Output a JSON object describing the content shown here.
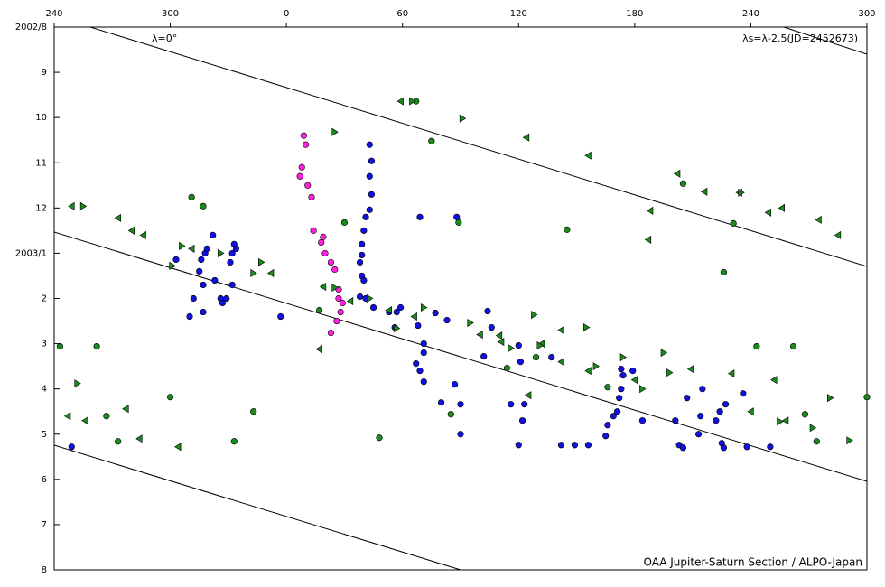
{
  "chart_data": {
    "type": "scatter",
    "annotations": [
      "λ=0°",
      "λs=λ-2.5(JD=2452673)",
      "OAA Jupiter-Saturn Section / ALPO-Japan"
    ],
    "xlim": [
      240,
      660
    ],
    "xticks": [
      240,
      300,
      {
        "value": 360,
        "label": "0"
      },
      {
        "value": 420,
        "label": "60"
      },
      {
        "value": 480,
        "label": "120"
      },
      {
        "value": 540,
        "label": "180"
      },
      {
        "value": 600,
        "label": "240"
      },
      {
        "value": 660,
        "label": "300"
      }
    ],
    "ylim": [
      0,
      12
    ],
    "yticks": [
      {
        "value": 0,
        "label": "2002/8"
      },
      {
        "value": 1,
        "label": "9"
      },
      {
        "value": 2,
        "label": "10"
      },
      {
        "value": 3,
        "label": "11"
      },
      {
        "value": 4,
        "label": "12"
      },
      {
        "value": 5,
        "label": "2003/1"
      },
      {
        "value": 6,
        "label": "2"
      },
      {
        "value": 7,
        "label": "3"
      },
      {
        "value": 8,
        "label": "4"
      },
      {
        "value": 9,
        "label": "5"
      },
      {
        "value": 10,
        "label": "6"
      },
      {
        "value": 11,
        "label": "7"
      },
      {
        "value": 12,
        "label": "8"
      }
    ],
    "y_inverted": true,
    "series": [
      {
        "marker": "circle",
        "color": "#1010e0",
        "x": [
          303,
          310,
          312,
          315,
          316,
          317,
          318,
          319,
          322,
          323,
          326,
          327,
          329,
          331,
          332,
          333,
          332,
          334,
          317,
          249,
          403,
          404,
          403,
          404,
          403,
          401,
          400,
          399,
          399,
          398,
          399,
          400,
          398,
          401,
          357,
          405,
          413,
          417,
          419,
          416,
          428,
          431,
          431,
          427,
          429,
          431,
          437,
          443,
          440,
          447,
          450,
          450,
          464,
          466,
          462,
          429,
          448,
          480,
          481,
          483,
          482,
          480,
          476,
          497,
          502,
          509,
          516,
          525,
          526,
          529,
          531,
          532,
          533,
          534,
          533,
          539,
          544,
          561,
          563,
          565,
          567,
          573,
          574,
          575,
          582,
          584,
          585,
          586,
          587,
          596,
          598,
          610
        ],
        "y": [
          5.14,
          6.4,
          6.0,
          5.4,
          5.14,
          5.7,
          5.0,
          4.9,
          4.6,
          5.6,
          6.0,
          6.1,
          6.0,
          5.2,
          5.0,
          4.8,
          5.7,
          4.9,
          6.3,
          9.28,
          2.6,
          2.96,
          3.3,
          3.7,
          4.04,
          4.2,
          4.5,
          4.8,
          5.04,
          5.2,
          5.5,
          5.6,
          5.96,
          6.0,
          6.4,
          6.2,
          6.3,
          6.3,
          6.2,
          6.64,
          6.6,
          7.0,
          7.2,
          7.44,
          7.6,
          7.84,
          6.32,
          6.48,
          8.3,
          7.9,
          8.34,
          9.0,
          6.28,
          6.64,
          7.28,
          4.2,
          4.2,
          7.04,
          7.4,
          8.34,
          8.7,
          9.24,
          8.34,
          7.3,
          9.24,
          9.24,
          9.24,
          9.04,
          8.8,
          8.6,
          8.5,
          8.2,
          8.0,
          7.7,
          7.56,
          7.6,
          8.7,
          8.7,
          9.24,
          9.3,
          8.2,
          9.0,
          8.6,
          8.0,
          8.7,
          8.5,
          9.2,
          9.3,
          8.34,
          8.1,
          9.28,
          9.28
        ]
      },
      {
        "marker": "circle",
        "color": "#ff20e0",
        "x": [
          369,
          370,
          368,
          367,
          371,
          373,
          374,
          378,
          379,
          380,
          383,
          385,
          387,
          387,
          389,
          388,
          386,
          383
        ],
        "y": [
          2.4,
          2.6,
          3.1,
          3.3,
          3.5,
          3.76,
          4.5,
          4.76,
          4.64,
          5.0,
          5.2,
          5.36,
          5.8,
          6.0,
          6.1,
          6.3,
          6.5,
          6.76
        ]
      },
      {
        "marker": "circle",
        "color": "#1a8a1a",
        "x": [
          311,
          317,
          390,
          427,
          435,
          449,
          505,
          565,
          591,
          586,
          243,
          262,
          300,
          343,
          333,
          408,
          273,
          267,
          445,
          377,
          603,
          622,
          628,
          634,
          660,
          474,
          489,
          526
        ],
        "y": [
          3.76,
          3.96,
          4.32,
          1.64,
          2.52,
          4.32,
          4.48,
          3.46,
          4.34,
          5.42,
          7.06,
          7.06,
          8.18,
          8.5,
          9.16,
          9.08,
          9.16,
          8.6,
          8.56,
          6.26,
          7.06,
          7.06,
          8.56,
          9.16,
          8.18,
          7.54,
          7.3,
          7.96
        ]
      },
      {
        "marker": "triangle-left",
        "color": "#1a8a1a",
        "x": [
          249,
          273,
          280,
          286,
          311,
          352,
          419,
          484,
          516,
          562,
          548,
          547,
          576,
          594,
          609,
          616,
          635,
          645,
          377,
          393,
          426,
          460,
          470,
          502,
          492,
          502,
          516,
          540,
          569,
          590,
          600,
          612,
          618,
          247,
          256,
          277,
          284,
          304,
          379,
          413,
          485,
          471
        ],
        "y": [
          3.96,
          4.22,
          4.5,
          4.6,
          4.9,
          5.44,
          1.64,
          2.44,
          2.84,
          3.24,
          4.06,
          4.7,
          3.64,
          3.66,
          4.1,
          4.0,
          4.26,
          4.6,
          7.12,
          6.06,
          6.4,
          6.8,
          6.82,
          6.7,
          7.0,
          7.4,
          7.6,
          7.8,
          7.56,
          7.66,
          8.5,
          7.8,
          8.7,
          8.6,
          8.7,
          8.44,
          9.1,
          9.28,
          5.74,
          6.26,
          8.14,
          6.96
        ]
      },
      {
        "marker": "triangle-right",
        "color": "#1a8a1a",
        "x": [
          252,
          255,
          301,
          306,
          326,
          343,
          347,
          385,
          385,
          403,
          451,
          425,
          417,
          431,
          455,
          491,
          515,
          520,
          534,
          544,
          555,
          558,
          595,
          641,
          632,
          651,
          615,
          488,
          476
        ],
        "y": [
          7.88,
          3.96,
          5.28,
          4.84,
          5.0,
          5.44,
          5.2,
          2.32,
          5.76,
          6.0,
          2.02,
          1.64,
          6.66,
          6.2,
          6.54,
          7.04,
          6.64,
          7.5,
          7.3,
          8.0,
          7.2,
          7.64,
          3.66,
          8.2,
          8.86,
          9.14,
          8.72,
          6.36,
          7.1
        ]
      }
    ]
  }
}
